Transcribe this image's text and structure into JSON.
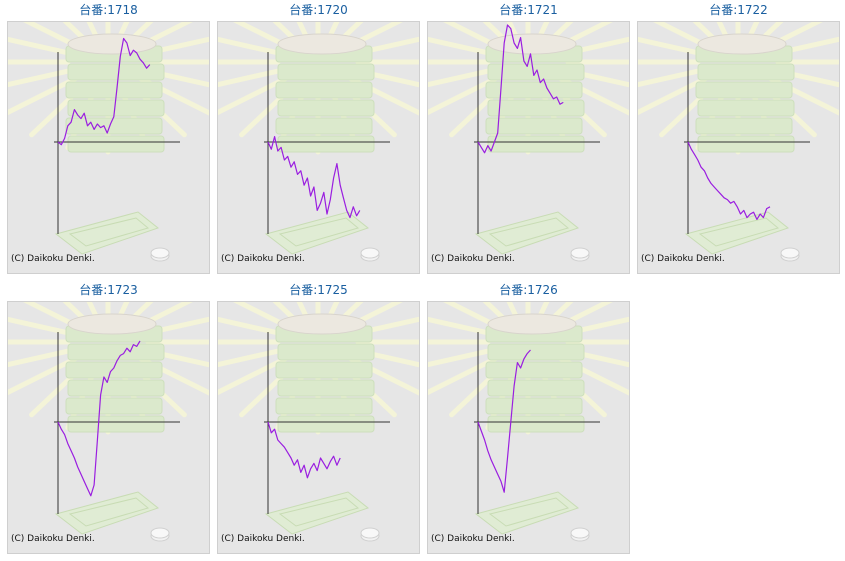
{
  "colors": {
    "title": "#1a5fa0",
    "line": "#9a1ee0",
    "axis": "#333333",
    "panel_bg": "#e6e6e6",
    "rays": "#f4f4d8",
    "machine": "#dbe9cc"
  },
  "icon": "pachinko-ball-tray-watermark",
  "chart_data": [
    {
      "type": "line",
      "title": "台番:1718",
      "copyright": "(C) Daikoku Denki.",
      "x": [
        0,
        4,
        8,
        12,
        16,
        20,
        24,
        28,
        32,
        36,
        40,
        44,
        48,
        52,
        56,
        60,
        64,
        68,
        72,
        76,
        80,
        84,
        88,
        92,
        96,
        100,
        104,
        108,
        112
      ],
      "values": [
        0,
        -3,
        4,
        18,
        22,
        36,
        30,
        26,
        32,
        18,
        22,
        14,
        20,
        16,
        18,
        10,
        20,
        28,
        60,
        95,
        115,
        110,
        96,
        102,
        99,
        92,
        88,
        82,
        86
      ]
    },
    {
      "type": "line",
      "title": "台番:1720",
      "copyright": "(C) Daikoku Denki.",
      "x": [
        0,
        4,
        8,
        12,
        16,
        20,
        24,
        28,
        32,
        36,
        40,
        44,
        48,
        52,
        56,
        60,
        64,
        68,
        72,
        76,
        80,
        84,
        88,
        92,
        96,
        100,
        104,
        108,
        112
      ],
      "values": [
        0,
        -8,
        6,
        -10,
        -6,
        -20,
        -16,
        -28,
        -22,
        -36,
        -32,
        -48,
        -40,
        -60,
        -50,
        -76,
        -68,
        -56,
        -80,
        -64,
        -40,
        -24,
        -48,
        -62,
        -76,
        -84,
        -72,
        -82,
        -76
      ]
    },
    {
      "type": "line",
      "title": "台番:1721",
      "copyright": "(C) Daikoku Denki.",
      "x": [
        0,
        4,
        8,
        12,
        16,
        20,
        24,
        28,
        32,
        36,
        40,
        44,
        48,
        52,
        56,
        60,
        64,
        68,
        72,
        76,
        80,
        84,
        88,
        92,
        96,
        100,
        104
      ],
      "values": [
        0,
        -6,
        -12,
        -4,
        -10,
        0,
        10,
        60,
        110,
        130,
        126,
        110,
        104,
        116,
        90,
        84,
        98,
        74,
        80,
        66,
        70,
        60,
        54,
        48,
        50,
        42,
        44
      ]
    },
    {
      "type": "line",
      "title": "台番:1722",
      "copyright": "(C) Daikoku Denki.",
      "x": [
        0,
        4,
        8,
        12,
        16,
        20,
        24,
        28,
        32,
        36,
        40,
        44,
        48,
        52,
        56,
        60,
        64,
        68,
        72,
        76,
        80,
        84,
        88,
        92,
        96,
        100
      ],
      "values": [
        0,
        -8,
        -14,
        -20,
        -28,
        -32,
        -40,
        -46,
        -50,
        -54,
        -58,
        -62,
        -64,
        -68,
        -66,
        -72,
        -80,
        -76,
        -84,
        -80,
        -78,
        -86,
        -80,
        -84,
        -74,
        -72
      ]
    },
    {
      "type": "line",
      "title": "台番:1723",
      "copyright": "(C) Daikoku Denki.",
      "x": [
        0,
        4,
        8,
        12,
        16,
        20,
        24,
        28,
        32,
        36,
        40,
        44,
        48,
        52,
        56,
        60,
        64,
        68,
        72,
        76,
        80,
        84,
        88,
        92,
        96,
        100
      ],
      "values": [
        0,
        -8,
        -14,
        -24,
        -32,
        -40,
        -50,
        -58,
        -66,
        -74,
        -82,
        -70,
        -20,
        30,
        50,
        44,
        56,
        60,
        68,
        74,
        76,
        82,
        78,
        86,
        84,
        90
      ]
    },
    {
      "type": "line",
      "title": "台番:1725",
      "copyright": "(C) Daikoku Denki.",
      "x": [
        0,
        4,
        8,
        12,
        16,
        20,
        24,
        28,
        32,
        36,
        40,
        44,
        48,
        52,
        56,
        60,
        64,
        68,
        72,
        76,
        80,
        84,
        88
      ],
      "values": [
        0,
        -12,
        -8,
        -20,
        -24,
        -28,
        -34,
        -40,
        -48,
        -42,
        -56,
        -48,
        -62,
        -52,
        -46,
        -54,
        -40,
        -46,
        -52,
        -44,
        -38,
        -48,
        -40
      ]
    },
    {
      "type": "line",
      "title": "台番:1726",
      "copyright": "(C) Daikoku Denki.",
      "x": [
        0,
        4,
        8,
        12,
        16,
        20,
        24,
        28,
        32,
        36,
        40,
        44,
        48,
        52,
        56,
        60,
        64
      ],
      "values": [
        0,
        -10,
        -20,
        -32,
        -42,
        -50,
        -58,
        -66,
        -78,
        -40,
        0,
        40,
        66,
        60,
        70,
        76,
        80
      ]
    }
  ]
}
